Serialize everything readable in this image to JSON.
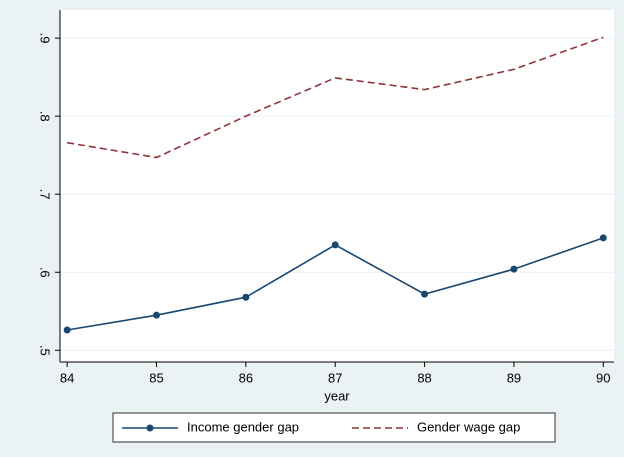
{
  "chart_data": {
    "type": "line",
    "x_label": "year",
    "x": [
      84,
      85,
      86,
      87,
      88,
      89,
      90
    ],
    "series": [
      {
        "name": "Income gender gap",
        "color": "#1a476f",
        "dash": false,
        "markers": true,
        "values": [
          0.526,
          0.545,
          0.568,
          0.635,
          0.572,
          0.604,
          0.644
        ]
      },
      {
        "name": "Gender wage gap",
        "color": "#90353b",
        "dash": true,
        "markers": false,
        "values": [
          0.766,
          0.747,
          0.8,
          0.849,
          0.834,
          0.86,
          0.901
        ]
      }
    ],
    "xlim": [
      83.92,
      90.12
    ],
    "xticks": [
      84,
      85,
      86,
      87,
      88,
      89,
      90
    ],
    "ylim": [
      0.485,
      0.936
    ],
    "yticks": [
      {
        "value": 0.5,
        "label": ".5"
      },
      {
        "value": 0.6,
        "label": ".6"
      },
      {
        "value": 0.7,
        "label": ".7"
      },
      {
        "value": 0.8,
        "label": ".8"
      },
      {
        "value": 0.9,
        "label": ".9"
      }
    ],
    "grid": true,
    "legend": "bottom"
  }
}
